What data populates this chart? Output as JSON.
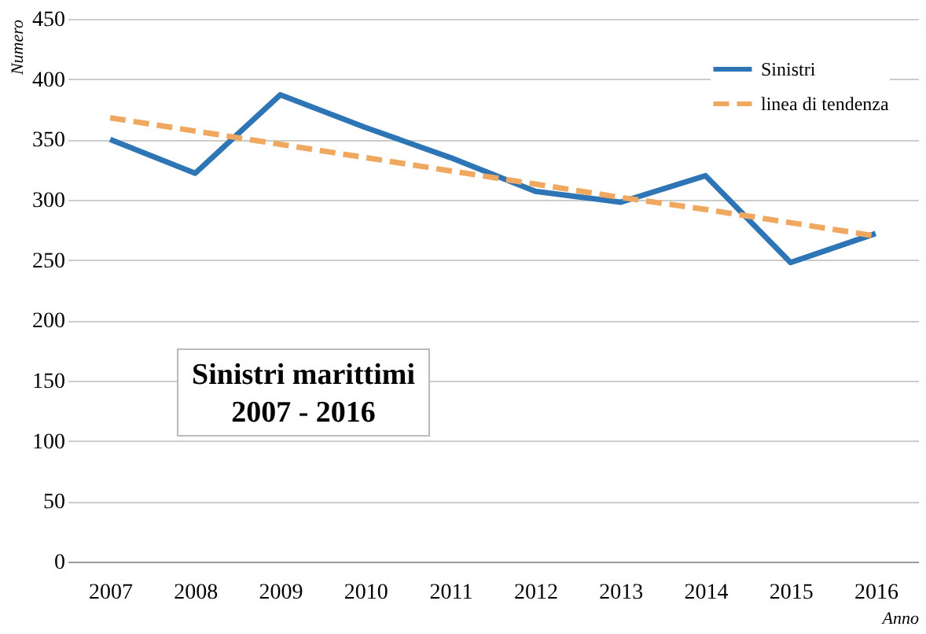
{
  "chart_data": {
    "type": "line",
    "title": "Sinistri marittimi\n2007 - 2016",
    "xlabel": "Anno",
    "ylabel": "Numero",
    "categories": [
      "2007",
      "2008",
      "2009",
      "2010",
      "2011",
      "2012",
      "2013",
      "2014",
      "2015",
      "2016"
    ],
    "series": [
      {
        "name": "Sinistri",
        "color": "#2e75b6",
        "line_style": "solid",
        "values": [
          350,
          322,
          387,
          360,
          335,
          307,
          298,
          320,
          248,
          272
        ]
      },
      {
        "name": "linea di tendenza",
        "color": "#f0a860",
        "line_style": "dashed",
        "values": [
          368,
          357,
          346,
          335,
          324,
          313,
          302,
          292,
          281,
          270
        ]
      }
    ],
    "ylim": [
      0,
      450
    ],
    "yticks": [
      0,
      50,
      100,
      150,
      200,
      250,
      300,
      350,
      400,
      450
    ],
    "grid": "y",
    "legend": "top right",
    "marker": "none"
  }
}
